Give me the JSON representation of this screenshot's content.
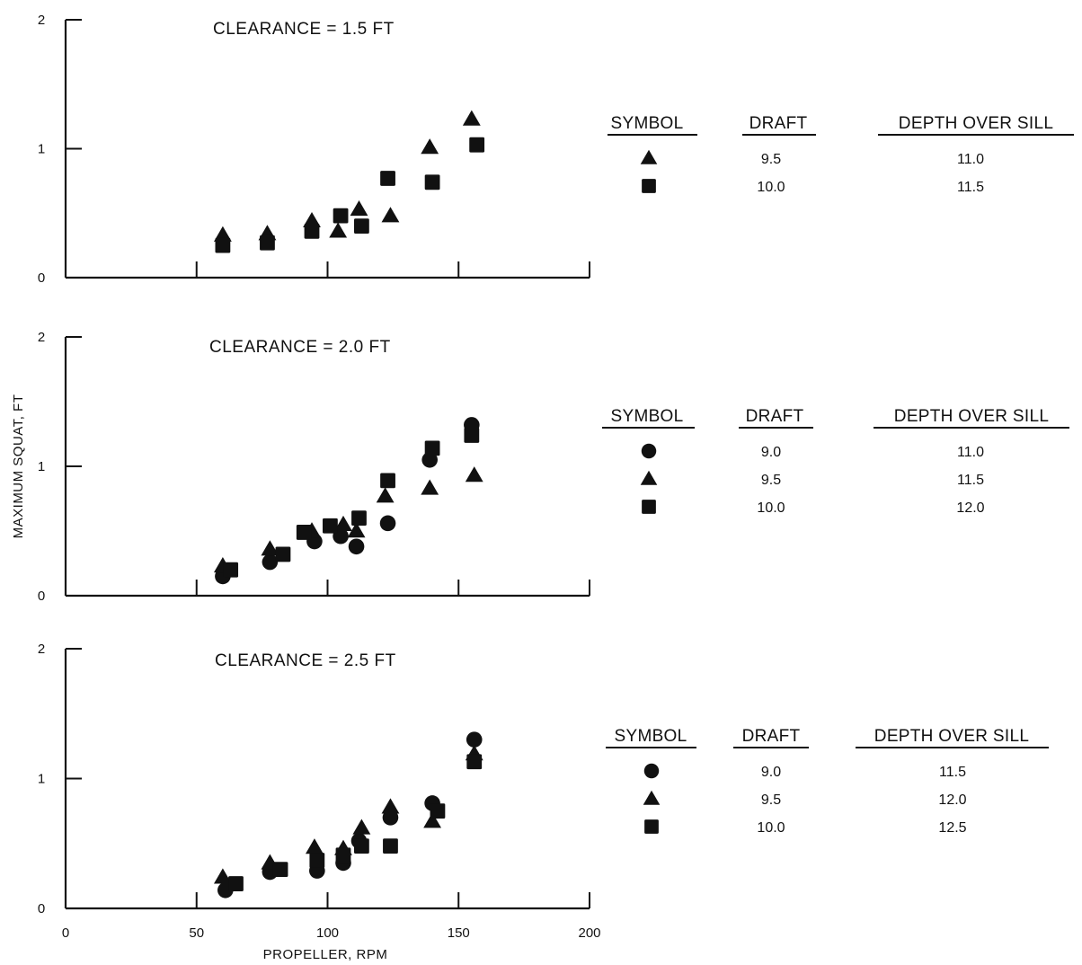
{
  "chart_data": [
    {
      "type": "scatter",
      "title": "CLEARANCE = 1.5 FT",
      "xlabel": "",
      "ylabel": "",
      "xlim": [
        0,
        200
      ],
      "ylim": [
        0,
        2
      ],
      "x_ticks": [
        "0",
        "50",
        "100",
        "150",
        "200"
      ],
      "x_tick_labels_shown": false,
      "y_ticks": [
        "0",
        "1",
        "2"
      ],
      "grid": false,
      "legend": {
        "placement": "right",
        "headers": [
          "SYMBOL",
          "DRAFT",
          "DEPTH OVER SILL"
        ],
        "rows": [
          {
            "symbol": "triangle",
            "draft": "9.5",
            "depth": "11.0"
          },
          {
            "symbol": "square",
            "draft": "10.0",
            "depth": "11.5"
          }
        ]
      },
      "series": [
        {
          "symbol": "triangle",
          "points": [
            [
              60,
              0.33
            ],
            [
              77,
              0.34
            ],
            [
              94,
              0.44
            ],
            [
              104,
              0.36
            ],
            [
              112,
              0.53
            ],
            [
              124,
              0.48
            ],
            [
              139,
              1.01
            ],
            [
              155,
              1.23
            ]
          ]
        },
        {
          "symbol": "square",
          "points": [
            [
              60,
              0.25
            ],
            [
              77,
              0.27
            ],
            [
              94,
              0.36
            ],
            [
              105,
              0.48
            ],
            [
              113,
              0.4
            ],
            [
              123,
              0.77
            ],
            [
              140,
              0.74
            ],
            [
              157,
              1.03
            ]
          ]
        }
      ]
    },
    {
      "type": "scatter",
      "title": "CLEARANCE = 2.0 FT",
      "xlabel": "",
      "ylabel": "MAXIMUM SQUAT, FT",
      "xlim": [
        0,
        200
      ],
      "ylim": [
        0,
        2
      ],
      "x_ticks": [
        "0",
        "50",
        "100",
        "150",
        "200"
      ],
      "x_tick_labels_shown": false,
      "y_ticks": [
        "0",
        "1",
        "2"
      ],
      "grid": false,
      "legend": {
        "placement": "right",
        "headers": [
          "SYMBOL",
          "DRAFT",
          "DEPTH OVER SILL"
        ],
        "rows": [
          {
            "symbol": "circle",
            "draft": "9.0",
            "depth": "11.0"
          },
          {
            "symbol": "triangle",
            "draft": "9.5",
            "depth": "11.5"
          },
          {
            "symbol": "square",
            "draft": "10.0",
            "depth": "12.0"
          }
        ]
      },
      "series": [
        {
          "symbol": "circle",
          "points": [
            [
              60,
              0.15
            ],
            [
              78,
              0.26
            ],
            [
              95,
              0.42
            ],
            [
              105,
              0.46
            ],
            [
              111,
              0.38
            ],
            [
              123,
              0.56
            ],
            [
              139,
              1.05
            ],
            [
              155,
              1.32
            ]
          ]
        },
        {
          "symbol": "triangle",
          "points": [
            [
              60,
              0.23
            ],
            [
              78,
              0.36
            ],
            [
              94,
              0.5
            ],
            [
              106,
              0.55
            ],
            [
              111,
              0.5
            ],
            [
              122,
              0.77
            ],
            [
              139,
              0.83
            ],
            [
              156,
              0.93
            ]
          ]
        },
        {
          "symbol": "square",
          "points": [
            [
              63,
              0.2
            ],
            [
              83,
              0.32
            ],
            [
              91,
              0.49
            ],
            [
              101,
              0.54
            ],
            [
              112,
              0.6
            ],
            [
              123,
              0.89
            ],
            [
              140,
              1.14
            ],
            [
              155,
              1.24
            ]
          ]
        }
      ]
    },
    {
      "type": "scatter",
      "title": "CLEARANCE = 2.5 FT",
      "xlabel": "PROPELLER, RPM",
      "ylabel": "",
      "xlim": [
        0,
        200
      ],
      "ylim": [
        0,
        2
      ],
      "x_ticks": [
        "0",
        "50",
        "100",
        "150",
        "200"
      ],
      "x_tick_labels_shown": true,
      "y_ticks": [
        "0",
        "1",
        "2"
      ],
      "grid": false,
      "legend": {
        "placement": "right",
        "headers": [
          "SYMBOL",
          "DRAFT",
          "DEPTH OVER SILL"
        ],
        "rows": [
          {
            "symbol": "circle",
            "draft": "9.0",
            "depth": "11.5"
          },
          {
            "symbol": "triangle",
            "draft": "9.5",
            "depth": "12.0"
          },
          {
            "symbol": "square",
            "draft": "10.0",
            "depth": "12.5"
          }
        ]
      },
      "series": [
        {
          "symbol": "circle",
          "points": [
            [
              61,
              0.14
            ],
            [
              78,
              0.28
            ],
            [
              96,
              0.29
            ],
            [
              106,
              0.35
            ],
            [
              112,
              0.52
            ],
            [
              124,
              0.7
            ],
            [
              140,
              0.81
            ],
            [
              156,
              1.3
            ]
          ]
        },
        {
          "symbol": "triangle",
          "points": [
            [
              60,
              0.24
            ],
            [
              78,
              0.35
            ],
            [
              95,
              0.47
            ],
            [
              106,
              0.46
            ],
            [
              113,
              0.62
            ],
            [
              124,
              0.78
            ],
            [
              140,
              0.67
            ],
            [
              156,
              1.19
            ]
          ]
        },
        {
          "symbol": "square",
          "points": [
            [
              65,
              0.19
            ],
            [
              82,
              0.3
            ],
            [
              96,
              0.37
            ],
            [
              106,
              0.41
            ],
            [
              113,
              0.48
            ],
            [
              124,
              0.48
            ],
            [
              142,
              0.75
            ],
            [
              156,
              1.13
            ]
          ]
        }
      ]
    }
  ]
}
